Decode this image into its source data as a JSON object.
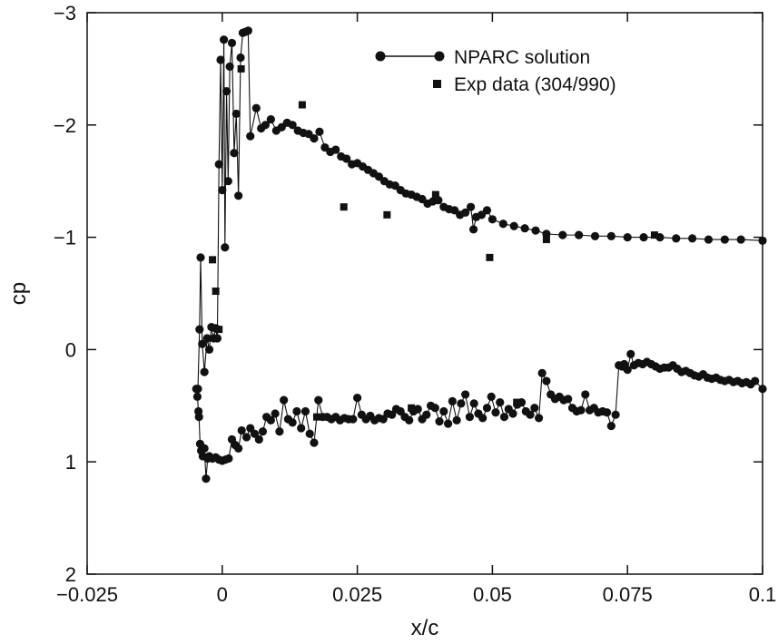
{
  "chart_data": {
    "type": "scatter",
    "title": "",
    "xlabel": "x/c",
    "ylabel": "cp",
    "xlim": [
      -0.025,
      0.1
    ],
    "ylim": [
      2,
      -3
    ],
    "y_axis_inverted": true,
    "grid": false,
    "legend_position": "top-right",
    "x_ticks": [
      "-0.025",
      "0",
      "0.025",
      "0.05",
      "0.075",
      "0.1"
    ],
    "x_tick_values": [
      -0.025,
      0,
      0.025,
      0.05,
      0.075,
      0.1
    ],
    "y_ticks": [
      "-3",
      "-2",
      "-1",
      "0",
      "1",
      "2"
    ],
    "y_tick_values": [
      -3,
      -2,
      -1,
      0,
      1,
      2
    ],
    "series": [
      {
        "name": "NPARC solution",
        "style": "line-with-circle-markers",
        "color": "#111111",
        "upper_surface": [
          [
            -0.0045,
            0.35
          ],
          [
            -0.0042,
            -0.18
          ],
          [
            -0.004,
            -0.82
          ],
          [
            -0.0037,
            -0.05
          ],
          [
            -0.0033,
            0.2
          ],
          [
            -0.0028,
            -0.1
          ],
          [
            -0.0024,
            0.0
          ],
          [
            -0.002,
            -0.2
          ],
          [
            -0.0016,
            -0.1
          ],
          [
            -0.0012,
            -0.19
          ],
          [
            -0.0009,
            -0.1
          ],
          [
            -0.0006,
            -1.65
          ],
          [
            -0.0003,
            -2.58
          ],
          [
            0.0,
            -1.42
          ],
          [
            0.0003,
            -2.76
          ],
          [
            0.0005,
            -0.91
          ],
          [
            0.0008,
            -2.3
          ],
          [
            0.0011,
            -1.5
          ],
          [
            0.0014,
            -2.52
          ],
          [
            0.0018,
            -2.73
          ],
          [
            0.0022,
            -1.75
          ],
          [
            0.0026,
            -2.1
          ],
          [
            0.003,
            -1.37
          ],
          [
            0.0034,
            -2.6
          ],
          [
            0.0038,
            -2.82
          ],
          [
            0.0043,
            -2.83
          ],
          [
            0.0048,
            -2.84
          ],
          [
            0.0052,
            -1.9
          ],
          [
            0.0063,
            -2.15
          ],
          [
            0.0072,
            -1.97
          ],
          [
            0.008,
            -2.0
          ],
          [
            0.009,
            -2.05
          ],
          [
            0.01,
            -1.95
          ],
          [
            0.011,
            -1.98
          ],
          [
            0.012,
            -2.02
          ],
          [
            0.013,
            -2.0
          ],
          [
            0.014,
            -1.95
          ],
          [
            0.015,
            -1.93
          ],
          [
            0.016,
            -1.92
          ],
          [
            0.017,
            -1.88
          ],
          [
            0.018,
            -1.94
          ],
          [
            0.019,
            -1.8
          ],
          [
            0.02,
            -1.76
          ],
          [
            0.021,
            -1.78
          ],
          [
            0.022,
            -1.72
          ],
          [
            0.023,
            -1.7
          ],
          [
            0.024,
            -1.65
          ],
          [
            0.025,
            -1.66
          ],
          [
            0.026,
            -1.63
          ],
          [
            0.027,
            -1.6
          ],
          [
            0.028,
            -1.57
          ],
          [
            0.029,
            -1.54
          ],
          [
            0.03,
            -1.5
          ],
          [
            0.031,
            -1.47
          ],
          [
            0.032,
            -1.46
          ],
          [
            0.033,
            -1.42
          ],
          [
            0.034,
            -1.39
          ],
          [
            0.035,
            -1.38
          ],
          [
            0.036,
            -1.36
          ],
          [
            0.037,
            -1.34
          ],
          [
            0.038,
            -1.3
          ],
          [
            0.039,
            -1.32
          ],
          [
            0.04,
            -1.33
          ],
          [
            0.041,
            -1.27
          ],
          [
            0.042,
            -1.25
          ],
          [
            0.043,
            -1.24
          ],
          [
            0.044,
            -1.2
          ],
          [
            0.045,
            -1.22
          ],
          [
            0.046,
            -1.27
          ],
          [
            0.0465,
            -1.07
          ],
          [
            0.047,
            -1.18
          ],
          [
            0.048,
            -1.2
          ],
          [
            0.049,
            -1.24
          ],
          [
            0.05,
            -1.16
          ],
          [
            0.052,
            -1.12
          ],
          [
            0.054,
            -1.1
          ],
          [
            0.056,
            -1.08
          ],
          [
            0.058,
            -1.06
          ],
          [
            0.06,
            -1.03
          ],
          [
            0.063,
            -1.02
          ],
          [
            0.066,
            -1.02
          ],
          [
            0.069,
            -1.01
          ],
          [
            0.072,
            -1.01
          ],
          [
            0.075,
            -1.0
          ],
          [
            0.078,
            -1.0
          ],
          [
            0.081,
            -1.0
          ],
          [
            0.084,
            -0.99
          ],
          [
            0.087,
            -0.99
          ],
          [
            0.09,
            -0.98
          ],
          [
            0.093,
            -0.98
          ],
          [
            0.096,
            -0.98
          ],
          [
            0.1,
            -0.97
          ]
        ],
        "lower_surface": [
          [
            -0.0048,
            0.35
          ],
          [
            -0.0046,
            0.42
          ],
          [
            -0.0044,
            0.55
          ],
          [
            -0.0043,
            0.6
          ],
          [
            -0.0041,
            0.84
          ],
          [
            -0.0039,
            0.9
          ],
          [
            -0.0036,
            0.95
          ],
          [
            -0.0033,
            0.88
          ],
          [
            -0.003,
            1.15
          ],
          [
            -0.0027,
            0.97
          ],
          [
            -0.0024,
            0.95
          ],
          [
            -0.0018,
            0.97
          ],
          [
            -0.0012,
            0.96
          ],
          [
            -0.0006,
            0.98
          ],
          [
            0.0,
            0.99
          ],
          [
            0.0006,
            0.98
          ],
          [
            0.0012,
            0.97
          ],
          [
            0.0018,
            0.8
          ],
          [
            0.0024,
            0.85
          ],
          [
            0.003,
            0.88
          ],
          [
            0.0036,
            0.72
          ],
          [
            0.0045,
            0.78
          ],
          [
            0.0052,
            0.7
          ],
          [
            0.006,
            0.75
          ],
          [
            0.0068,
            0.8
          ],
          [
            0.0075,
            0.73
          ],
          [
            0.0082,
            0.6
          ],
          [
            0.009,
            0.63
          ],
          [
            0.0098,
            0.57
          ],
          [
            0.0106,
            0.73
          ],
          [
            0.0114,
            0.45
          ],
          [
            0.0122,
            0.62
          ],
          [
            0.013,
            0.65
          ],
          [
            0.0138,
            0.55
          ],
          [
            0.0146,
            0.7
          ],
          [
            0.0154,
            0.55
          ],
          [
            0.0162,
            0.75
          ],
          [
            0.017,
            0.83
          ],
          [
            0.0178,
            0.45
          ],
          [
            0.0186,
            0.6
          ],
          [
            0.0194,
            0.6
          ],
          [
            0.0202,
            0.62
          ],
          [
            0.021,
            0.6
          ],
          [
            0.0218,
            0.63
          ],
          [
            0.0226,
            0.61
          ],
          [
            0.0234,
            0.62
          ],
          [
            0.0242,
            0.62
          ],
          [
            0.025,
            0.43
          ],
          [
            0.0258,
            0.58
          ],
          [
            0.0266,
            0.62
          ],
          [
            0.0274,
            0.59
          ],
          [
            0.0282,
            0.63
          ],
          [
            0.029,
            0.61
          ],
          [
            0.0298,
            0.62
          ],
          [
            0.0306,
            0.57
          ],
          [
            0.0314,
            0.58
          ],
          [
            0.0322,
            0.53
          ],
          [
            0.033,
            0.55
          ],
          [
            0.0338,
            0.6
          ],
          [
            0.0346,
            0.63
          ],
          [
            0.0354,
            0.55
          ],
          [
            0.0362,
            0.53
          ],
          [
            0.037,
            0.62
          ],
          [
            0.0378,
            0.58
          ],
          [
            0.0386,
            0.5
          ],
          [
            0.0394,
            0.52
          ],
          [
            0.0402,
            0.64
          ],
          [
            0.041,
            0.55
          ],
          [
            0.0418,
            0.66
          ],
          [
            0.0426,
            0.46
          ],
          [
            0.0434,
            0.63
          ],
          [
            0.0442,
            0.48
          ],
          [
            0.045,
            0.4
          ],
          [
            0.0458,
            0.6
          ],
          [
            0.0466,
            0.48
          ],
          [
            0.0474,
            0.57
          ],
          [
            0.0482,
            0.61
          ],
          [
            0.049,
            0.52
          ],
          [
            0.0498,
            0.42
          ],
          [
            0.0506,
            0.56
          ],
          [
            0.0514,
            0.47
          ],
          [
            0.0522,
            0.6
          ],
          [
            0.053,
            0.53
          ],
          [
            0.0538,
            0.57
          ],
          [
            0.0546,
            0.49
          ],
          [
            0.0554,
            0.47
          ],
          [
            0.0562,
            0.55
          ],
          [
            0.057,
            0.58
          ],
          [
            0.0578,
            0.52
          ],
          [
            0.0586,
            0.61
          ],
          [
            0.0592,
            0.21
          ],
          [
            0.06,
            0.28
          ],
          [
            0.0608,
            0.4
          ],
          [
            0.0616,
            0.44
          ],
          [
            0.0624,
            0.42
          ],
          [
            0.0632,
            0.45
          ],
          [
            0.064,
            0.44
          ],
          [
            0.0648,
            0.52
          ],
          [
            0.0656,
            0.55
          ],
          [
            0.0664,
            0.54
          ],
          [
            0.0672,
            0.4
          ],
          [
            0.068,
            0.54
          ],
          [
            0.0688,
            0.52
          ],
          [
            0.0696,
            0.56
          ],
          [
            0.0704,
            0.55
          ],
          [
            0.0712,
            0.56
          ],
          [
            0.072,
            0.68
          ],
          [
            0.0728,
            0.58
          ],
          [
            0.0734,
            0.14
          ],
          [
            0.074,
            0.15
          ],
          [
            0.0744,
            0.13
          ],
          [
            0.075,
            0.18
          ],
          [
            0.0756,
            0.04
          ],
          [
            0.0762,
            0.14
          ],
          [
            0.077,
            0.12
          ],
          [
            0.0778,
            0.13
          ],
          [
            0.0786,
            0.11
          ],
          [
            0.0794,
            0.13
          ],
          [
            0.0802,
            0.15
          ],
          [
            0.081,
            0.17
          ],
          [
            0.0818,
            0.16
          ],
          [
            0.0826,
            0.16
          ],
          [
            0.0834,
            0.14
          ],
          [
            0.0842,
            0.17
          ],
          [
            0.085,
            0.2
          ],
          [
            0.0858,
            0.19
          ],
          [
            0.0866,
            0.21
          ],
          [
            0.0874,
            0.23
          ],
          [
            0.0882,
            0.24
          ],
          [
            0.089,
            0.22
          ],
          [
            0.0898,
            0.25
          ],
          [
            0.0906,
            0.26
          ],
          [
            0.0914,
            0.25
          ],
          [
            0.0922,
            0.27
          ],
          [
            0.093,
            0.28
          ],
          [
            0.0938,
            0.27
          ],
          [
            0.0946,
            0.29
          ],
          [
            0.0954,
            0.28
          ],
          [
            0.0962,
            0.3
          ],
          [
            0.097,
            0.29
          ],
          [
            0.0978,
            0.31
          ],
          [
            0.0986,
            0.28
          ],
          [
            0.1,
            0.35
          ]
        ]
      },
      {
        "name": "Exp data (304/990)",
        "style": "square-markers",
        "color": "#111111",
        "points": [
          [
            -0.0018,
            -0.8
          ],
          [
            -0.0012,
            -0.52
          ],
          [
            -0.0006,
            -0.18
          ],
          [
            0.0035,
            -2.5
          ],
          [
            0.0148,
            -2.18
          ],
          [
            0.0225,
            -1.27
          ],
          [
            0.0305,
            -1.2
          ],
          [
            0.0395,
            -1.38
          ],
          [
            0.0495,
            -0.82
          ],
          [
            0.06,
            -0.98
          ],
          [
            0.08,
            -1.02
          ],
          [
            0.0175,
            0.6
          ],
          [
            0.035,
            0.52
          ],
          [
            0.0545,
            0.47
          ]
        ]
      }
    ]
  }
}
